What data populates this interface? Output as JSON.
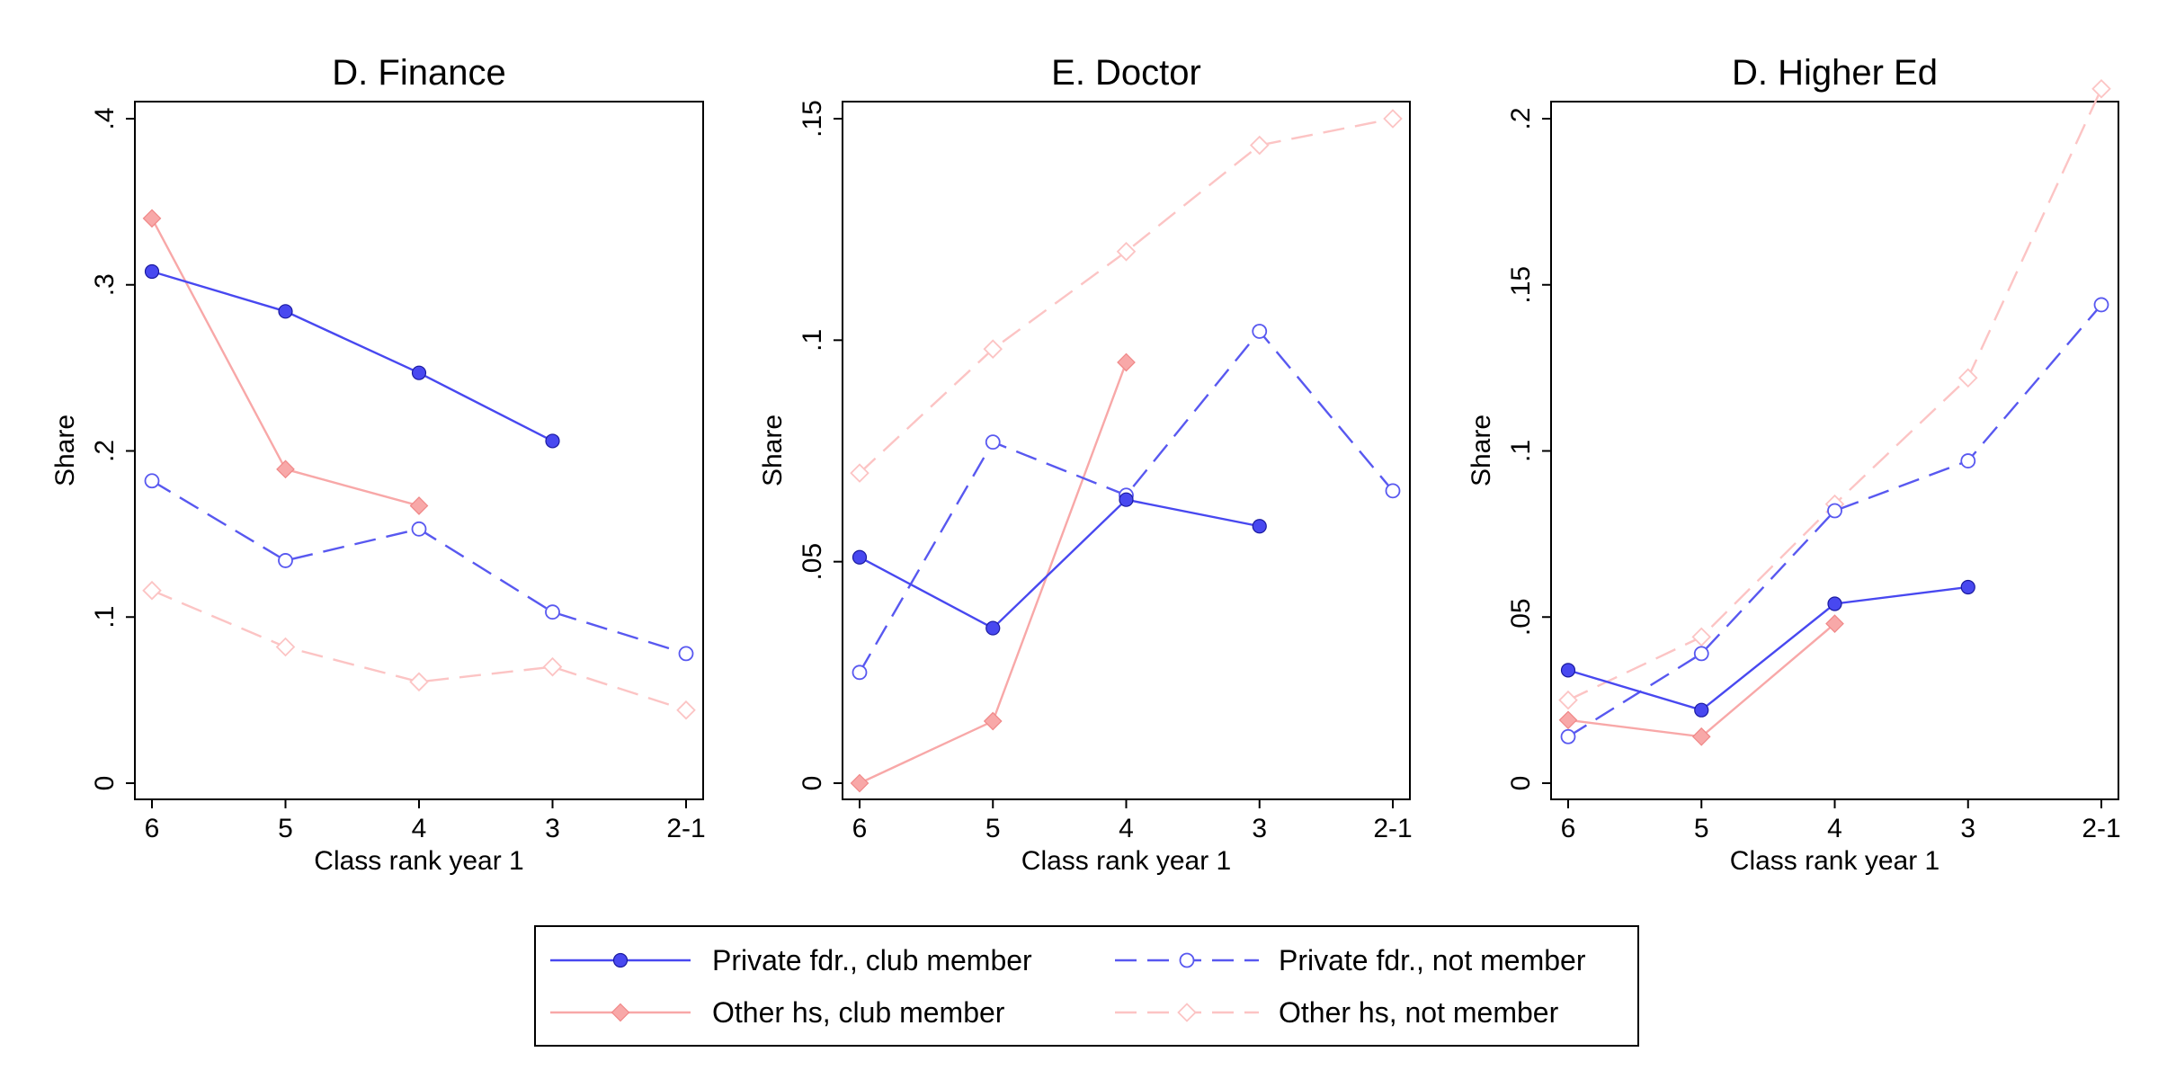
{
  "chart_data": [
    {
      "type": "line",
      "title": "D. Finance",
      "xlabel": "Class rank year 1",
      "ylabel": "Share",
      "categories": [
        "6",
        "5",
        "4",
        "3",
        "2-1"
      ],
      "ylim": [
        0,
        0.4
      ],
      "yticks": [
        {
          "value": 0,
          "label": "0"
        },
        {
          "value": 0.1,
          "label": ".1"
        },
        {
          "value": 0.2,
          "label": ".2"
        },
        {
          "value": 0.3,
          "label": ".3"
        },
        {
          "value": 0.4,
          "label": ".4"
        }
      ],
      "grid": false,
      "series": [
        {
          "name": "Private fdr., club member",
          "values": [
            0.308,
            0.284,
            0.247,
            0.206,
            null
          ]
        },
        {
          "name": "Private fdr., not member",
          "values": [
            0.182,
            0.134,
            0.153,
            0.103,
            0.078
          ]
        },
        {
          "name": "Other hs, club member",
          "values": [
            0.34,
            0.189,
            0.167,
            null,
            null
          ]
        },
        {
          "name": "Other hs, not member",
          "values": [
            0.116,
            0.082,
            0.061,
            0.07,
            0.044
          ]
        }
      ]
    },
    {
      "type": "line",
      "title": "E. Doctor",
      "xlabel": "Class rank year 1",
      "ylabel": "Share",
      "categories": [
        "6",
        "5",
        "4",
        "3",
        "2-1"
      ],
      "ylim": [
        0,
        0.15
      ],
      "yticks": [
        {
          "value": 0,
          "label": "0"
        },
        {
          "value": 0.05,
          "label": ".05"
        },
        {
          "value": 0.1,
          "label": ".1"
        },
        {
          "value": 0.15,
          "label": ".15"
        }
      ],
      "grid": false,
      "series": [
        {
          "name": "Private fdr., club member",
          "values": [
            0.051,
            0.035,
            0.064,
            0.058,
            null
          ]
        },
        {
          "name": "Private fdr., not member",
          "values": [
            0.025,
            0.077,
            0.065,
            0.102,
            0.066
          ]
        },
        {
          "name": "Other hs, club member",
          "values": [
            0.0,
            0.014,
            0.095,
            null,
            null
          ]
        },
        {
          "name": "Other hs, not member",
          "values": [
            0.07,
            0.098,
            0.12,
            0.144,
            0.15
          ]
        }
      ]
    },
    {
      "type": "line",
      "title": "D. Higher Ed",
      "xlabel": "Class rank year 1",
      "ylabel": "Share",
      "categories": [
        "6",
        "5",
        "4",
        "3",
        "2-1"
      ],
      "ylim": [
        0,
        0.2
      ],
      "yticks": [
        {
          "value": 0,
          "label": "0"
        },
        {
          "value": 0.05,
          "label": ".05"
        },
        {
          "value": 0.1,
          "label": ".1"
        },
        {
          "value": 0.15,
          "label": ".15"
        },
        {
          "value": 0.2,
          "label": ".2"
        }
      ],
      "grid": false,
      "series": [
        {
          "name": "Private fdr., club member",
          "values": [
            0.034,
            0.022,
            0.054,
            0.059,
            null
          ]
        },
        {
          "name": "Private fdr., not member",
          "values": [
            0.014,
            0.039,
            0.082,
            0.097,
            0.144
          ]
        },
        {
          "name": "Other hs, club member",
          "values": [
            0.019,
            0.014,
            0.048,
            null,
            null
          ]
        },
        {
          "name": "Other hs, not member",
          "values": [
            0.025,
            0.044,
            0.084,
            0.122,
            0.209
          ]
        }
      ]
    }
  ],
  "legend": {
    "placement": "bottom",
    "entries": [
      {
        "label": "Private fdr., club member"
      },
      {
        "label": "Private fdr., not member"
      },
      {
        "label": "Other hs, club member"
      },
      {
        "label": "Other hs, not member"
      }
    ]
  },
  "series_styles": [
    {
      "color": "#4848f0",
      "marker": "circle-filled",
      "line": "solid"
    },
    {
      "color": "#5858f0",
      "marker": "circle-hollow",
      "line": "dashed"
    },
    {
      "color": "#f8a8a8",
      "marker": "diamond-filled",
      "line": "solid"
    },
    {
      "color": "#fcc4c4",
      "marker": "diamond-hollow",
      "line": "dashed"
    }
  ]
}
